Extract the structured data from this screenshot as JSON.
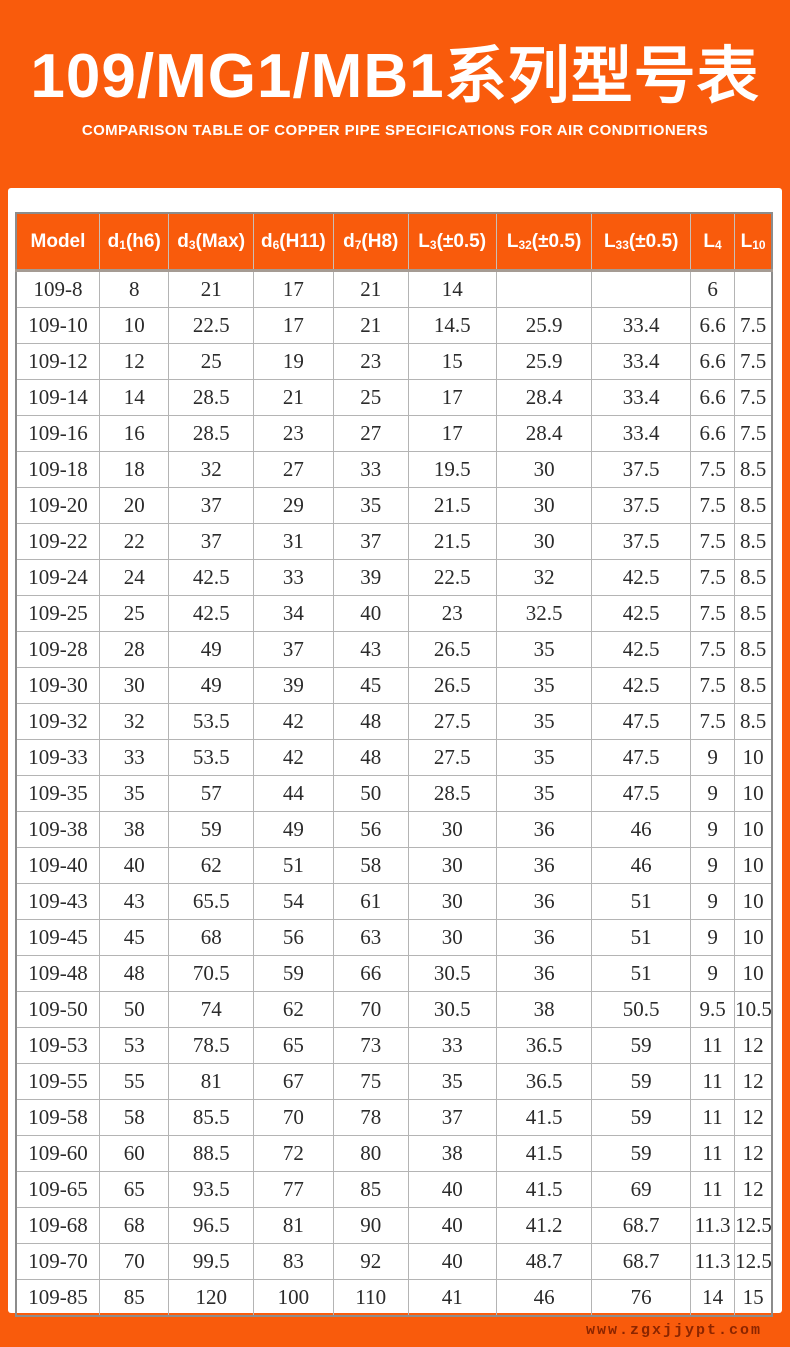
{
  "banner": {
    "title": "109/MG1/MB1系列型号表",
    "subtitle": "COMPARISON TABLE OF COPPER PIPE SPECIFICATIONS FOR AIR CONDITIONERS"
  },
  "colors": {
    "accent_orange": "#F95B0C",
    "header_text": "#FFFFFF",
    "body_text": "#2B2B2B",
    "grid_line": "#B4B4B4",
    "outer_border": "#8C8C8C",
    "footer_url_text": "#8B2500"
  },
  "table": {
    "columns": [
      {
        "id": "model",
        "base": "Model",
        "sub": "",
        "rest": ""
      },
      {
        "id": "d1",
        "base": "d",
        "sub": "1",
        "rest": "(h6)"
      },
      {
        "id": "d3",
        "base": "d",
        "sub": "3",
        "rest": "(Max)"
      },
      {
        "id": "d6",
        "base": "d",
        "sub": "6",
        "rest": "(H11)"
      },
      {
        "id": "d7",
        "base": "d",
        "sub": "7",
        "rest": "(H8)"
      },
      {
        "id": "l3",
        "base": "L",
        "sub": "3",
        "rest": "(±0.5)"
      },
      {
        "id": "l32",
        "base": "L",
        "sub": "32",
        "rest": "(±0.5)"
      },
      {
        "id": "l33",
        "base": "L",
        "sub": "33",
        "rest": "(±0.5)"
      },
      {
        "id": "l4",
        "base": "L",
        "sub": "4",
        "rest": ""
      },
      {
        "id": "l10",
        "base": "L",
        "sub": "10",
        "rest": ""
      }
    ],
    "rows": [
      [
        "109-8",
        "8",
        "21",
        "17",
        "21",
        "14",
        "",
        "",
        "6",
        ""
      ],
      [
        "109-10",
        "10",
        "22.5",
        "17",
        "21",
        "14.5",
        "25.9",
        "33.4",
        "6.6",
        "7.5"
      ],
      [
        "109-12",
        "12",
        "25",
        "19",
        "23",
        "15",
        "25.9",
        "33.4",
        "6.6",
        "7.5"
      ],
      [
        "109-14",
        "14",
        "28.5",
        "21",
        "25",
        "17",
        "28.4",
        "33.4",
        "6.6",
        "7.5"
      ],
      [
        "109-16",
        "16",
        "28.5",
        "23",
        "27",
        "17",
        "28.4",
        "33.4",
        "6.6",
        "7.5"
      ],
      [
        "109-18",
        "18",
        "32",
        "27",
        "33",
        "19.5",
        "30",
        "37.5",
        "7.5",
        "8.5"
      ],
      [
        "109-20",
        "20",
        "37",
        "29",
        "35",
        "21.5",
        "30",
        "37.5",
        "7.5",
        "8.5"
      ],
      [
        "109-22",
        "22",
        "37",
        "31",
        "37",
        "21.5",
        "30",
        "37.5",
        "7.5",
        "8.5"
      ],
      [
        "109-24",
        "24",
        "42.5",
        "33",
        "39",
        "22.5",
        "32",
        "42.5",
        "7.5",
        "8.5"
      ],
      [
        "109-25",
        "25",
        "42.5",
        "34",
        "40",
        "23",
        "32.5",
        "42.5",
        "7.5",
        "8.5"
      ],
      [
        "109-28",
        "28",
        "49",
        "37",
        "43",
        "26.5",
        "35",
        "42.5",
        "7.5",
        "8.5"
      ],
      [
        "109-30",
        "30",
        "49",
        "39",
        "45",
        "26.5",
        "35",
        "42.5",
        "7.5",
        "8.5"
      ],
      [
        "109-32",
        "32",
        "53.5",
        "42",
        "48",
        "27.5",
        "35",
        "47.5",
        "7.5",
        "8.5"
      ],
      [
        "109-33",
        "33",
        "53.5",
        "42",
        "48",
        "27.5",
        "35",
        "47.5",
        "9",
        "10"
      ],
      [
        "109-35",
        "35",
        "57",
        "44",
        "50",
        "28.5",
        "35",
        "47.5",
        "9",
        "10"
      ],
      [
        "109-38",
        "38",
        "59",
        "49",
        "56",
        "30",
        "36",
        "46",
        "9",
        "10"
      ],
      [
        "109-40",
        "40",
        "62",
        "51",
        "58",
        "30",
        "36",
        "46",
        "9",
        "10"
      ],
      [
        "109-43",
        "43",
        "65.5",
        "54",
        "61",
        "30",
        "36",
        "51",
        "9",
        "10"
      ],
      [
        "109-45",
        "45",
        "68",
        "56",
        "63",
        "30",
        "36",
        "51",
        "9",
        "10"
      ],
      [
        "109-48",
        "48",
        "70.5",
        "59",
        "66",
        "30.5",
        "36",
        "51",
        "9",
        "10"
      ],
      [
        "109-50",
        "50",
        "74",
        "62",
        "70",
        "30.5",
        "38",
        "50.5",
        "9.5",
        "10.5"
      ],
      [
        "109-53",
        "53",
        "78.5",
        "65",
        "73",
        "33",
        "36.5",
        "59",
        "11",
        "12"
      ],
      [
        "109-55",
        "55",
        "81",
        "67",
        "75",
        "35",
        "36.5",
        "59",
        "11",
        "12"
      ],
      [
        "109-58",
        "58",
        "85.5",
        "70",
        "78",
        "37",
        "41.5",
        "59",
        "11",
        "12"
      ],
      [
        "109-60",
        "60",
        "88.5",
        "72",
        "80",
        "38",
        "41.5",
        "59",
        "11",
        "12"
      ],
      [
        "109-65",
        "65",
        "93.5",
        "77",
        "85",
        "40",
        "41.5",
        "69",
        "11",
        "12"
      ],
      [
        "109-68",
        "68",
        "96.5",
        "81",
        "90",
        "40",
        "41.2",
        "68.7",
        "11.3",
        "12.5"
      ],
      [
        "109-70",
        "70",
        "99.5",
        "83",
        "92",
        "40",
        "48.7",
        "68.7",
        "11.3",
        "12.5"
      ],
      [
        "109-85",
        "85",
        "120",
        "100",
        "110",
        "41",
        "46",
        "76",
        "14",
        "15"
      ]
    ]
  },
  "footer": {
    "url": "www.zgxjjypt.com"
  }
}
